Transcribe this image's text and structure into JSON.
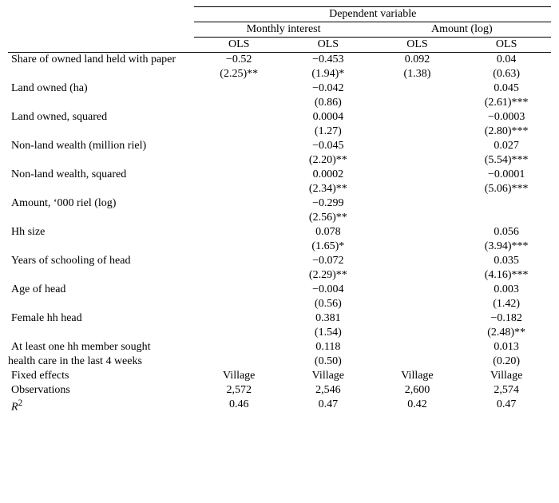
{
  "header": {
    "dep_var": "Dependent variable",
    "group1": "Monthly interest",
    "group2": "Amount (log)",
    "ols": "OLS"
  },
  "rows": [
    {
      "label": "Share of owned land held with paper",
      "c1": "−0.52",
      "p1": "(2.25)**",
      "c2": "−0.453",
      "p2": "(1.94)*",
      "c3": "0.092",
      "p3": "(1.38)",
      "c4": "0.04",
      "p4": "(0.63)"
    },
    {
      "label": "Land owned (ha)",
      "c1": "",
      "p1": "",
      "c2": "−0.042",
      "p2": "(0.86)",
      "c3": "",
      "p3": "",
      "c4": "0.045",
      "p4": "(2.61)***"
    },
    {
      "label": "Land owned, squared",
      "c1": "",
      "p1": "",
      "c2": "0.0004",
      "p2": "(1.27)",
      "c3": "",
      "p3": "",
      "c4": "−0.0003",
      "p4": "(2.80)***"
    },
    {
      "label": "Non-land wealth (million riel)",
      "c1": "",
      "p1": "",
      "c2": "−0.045",
      "p2": "(2.20)**",
      "c3": "",
      "p3": "",
      "c4": "0.027",
      "p4": "(5.54)***"
    },
    {
      "label": "Non-land wealth, squared",
      "c1": "",
      "p1": "",
      "c2": "0.0002",
      "p2": "(2.34)**",
      "c3": "",
      "p3": "",
      "c4": "−0.0001",
      "p4": "(5.06)***"
    },
    {
      "label": "Amount, ‘000 riel (log)",
      "c1": "",
      "p1": "",
      "c2": "−0.299",
      "p2": "(2.56)**",
      "c3": "",
      "p3": "",
      "c4": "",
      "p4": ""
    },
    {
      "label": "Hh size",
      "c1": "",
      "p1": "",
      "c2": "0.078",
      "p2": "(1.65)*",
      "c3": "",
      "p3": "",
      "c4": "0.056",
      "p4": "(3.94)***"
    },
    {
      "label": "Years of schooling of head",
      "c1": "",
      "p1": "",
      "c2": "−0.072",
      "p2": "(2.29)**",
      "c3": "",
      "p3": "",
      "c4": "0.035",
      "p4": "(4.16)***"
    },
    {
      "label": "Age of head",
      "c1": "",
      "p1": "",
      "c2": "−0.004",
      "p2": "(0.56)",
      "c3": "",
      "p3": "",
      "c4": "0.003",
      "p4": "(1.42)"
    },
    {
      "label": "Female hh head",
      "c1": "",
      "p1": "",
      "c2": "0.381",
      "p2": "(1.54)",
      "c3": "",
      "p3": "",
      "c4": "−0.182",
      "p4": "(2.48)**"
    },
    {
      "label": "At least one hh member sought",
      "label2": "health care in the last 4 weeks",
      "c1": "",
      "p1": "",
      "c2": "0.118",
      "p2": "(0.50)",
      "c3": "",
      "p3": "",
      "c4": "0.013",
      "p4": "(0.20)"
    }
  ],
  "footer": {
    "fixed_effects": {
      "label": "Fixed effects",
      "c1": "Village",
      "c2": "Village",
      "c3": "Village",
      "c4": "Village"
    },
    "observations": {
      "label": "Observations",
      "c1": "2,572",
      "c2": "2,546",
      "c3": "2,600",
      "c4": "2,574"
    },
    "r2_label_html": "R",
    "r2_sup": "2",
    "r2": {
      "c1": "0.46",
      "c2": "0.47",
      "c3": "0.42",
      "c4": "0.47"
    }
  }
}
